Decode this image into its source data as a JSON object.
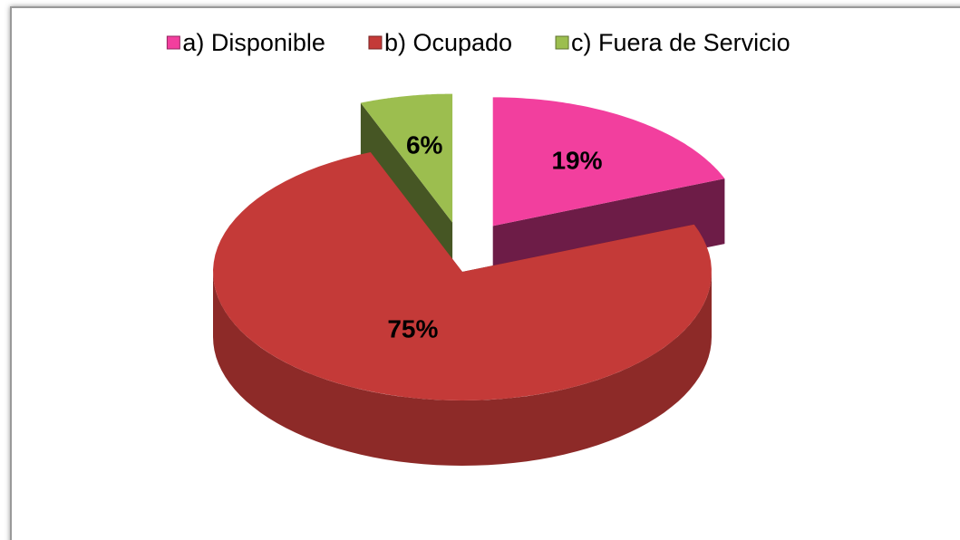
{
  "chart_data": {
    "type": "pie",
    "categories": [
      "a) Disponible",
      "b) Ocupado",
      "c) Fuera de Servicio"
    ],
    "values": [
      19,
      75,
      6
    ],
    "value_labels": [
      "19%",
      "75%",
      "6%"
    ],
    "colors": [
      "#f23f9e",
      "#c43a38",
      "#9cbe4f"
    ],
    "legend": "top"
  }
}
